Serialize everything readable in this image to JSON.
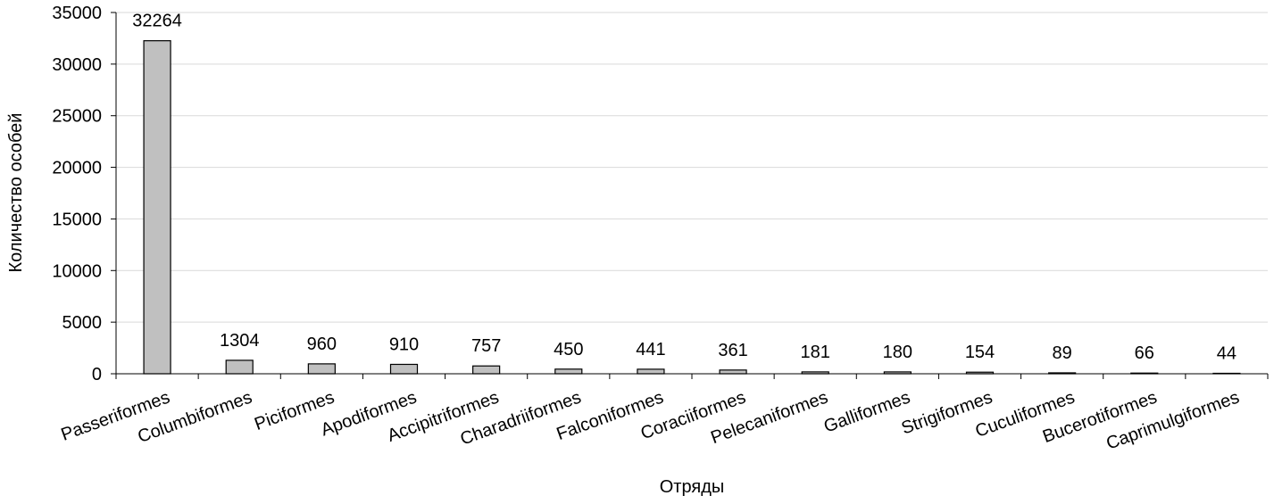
{
  "chart_data": {
    "type": "bar",
    "x_label": "Отряды",
    "y_label": "Количество особей",
    "categories": [
      "Passeriformes",
      "Columbiformes",
      "Piciformes",
      "Apodiformes",
      "Accipitriformes",
      "Charadriiformes",
      "Falconiformes",
      "Coraciiformes",
      "Pelecaniformes",
      "Galliformes",
      "Strigiformes",
      "Cuculiformes",
      "Bucerotiformes",
      "Caprimulgiformes"
    ],
    "values": [
      32264,
      1304,
      960,
      910,
      757,
      450,
      441,
      361,
      181,
      180,
      154,
      89,
      66,
      44
    ],
    "color": "#c0c0c0",
    "ylim": [
      0,
      35000
    ],
    "yticks": [
      0,
      5000,
      10000,
      15000,
      20000,
      25000,
      30000,
      35000
    ],
    "grid": true
  }
}
